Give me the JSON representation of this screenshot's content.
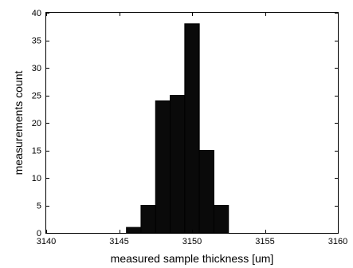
{
  "chart_data": {
    "type": "bar",
    "title": "",
    "xlabel": "measured sample thickness [um]",
    "ylabel": "measurements count",
    "xlim": [
      3140,
      3160
    ],
    "ylim": [
      0,
      40
    ],
    "xticks": [
      3140,
      3145,
      3150,
      3155,
      3160
    ],
    "yticks": [
      0,
      5,
      10,
      15,
      20,
      25,
      30,
      35,
      40
    ],
    "grid": false,
    "bin_width": 1,
    "bins": [
      {
        "x_start": 3145.5,
        "x_end": 3146.5,
        "count": 1
      },
      {
        "x_start": 3146.5,
        "x_end": 3147.5,
        "count": 5
      },
      {
        "x_start": 3147.5,
        "x_end": 3148.5,
        "count": 24
      },
      {
        "x_start": 3148.5,
        "x_end": 3149.5,
        "count": 25
      },
      {
        "x_start": 3149.5,
        "x_end": 3150.5,
        "count": 38
      },
      {
        "x_start": 3150.5,
        "x_end": 3151.5,
        "count": 15
      },
      {
        "x_start": 3151.5,
        "x_end": 3152.5,
        "count": 5
      }
    ],
    "colors": {
      "bar_fill": "#0a0a0a",
      "bar_edge": "#000000"
    }
  }
}
